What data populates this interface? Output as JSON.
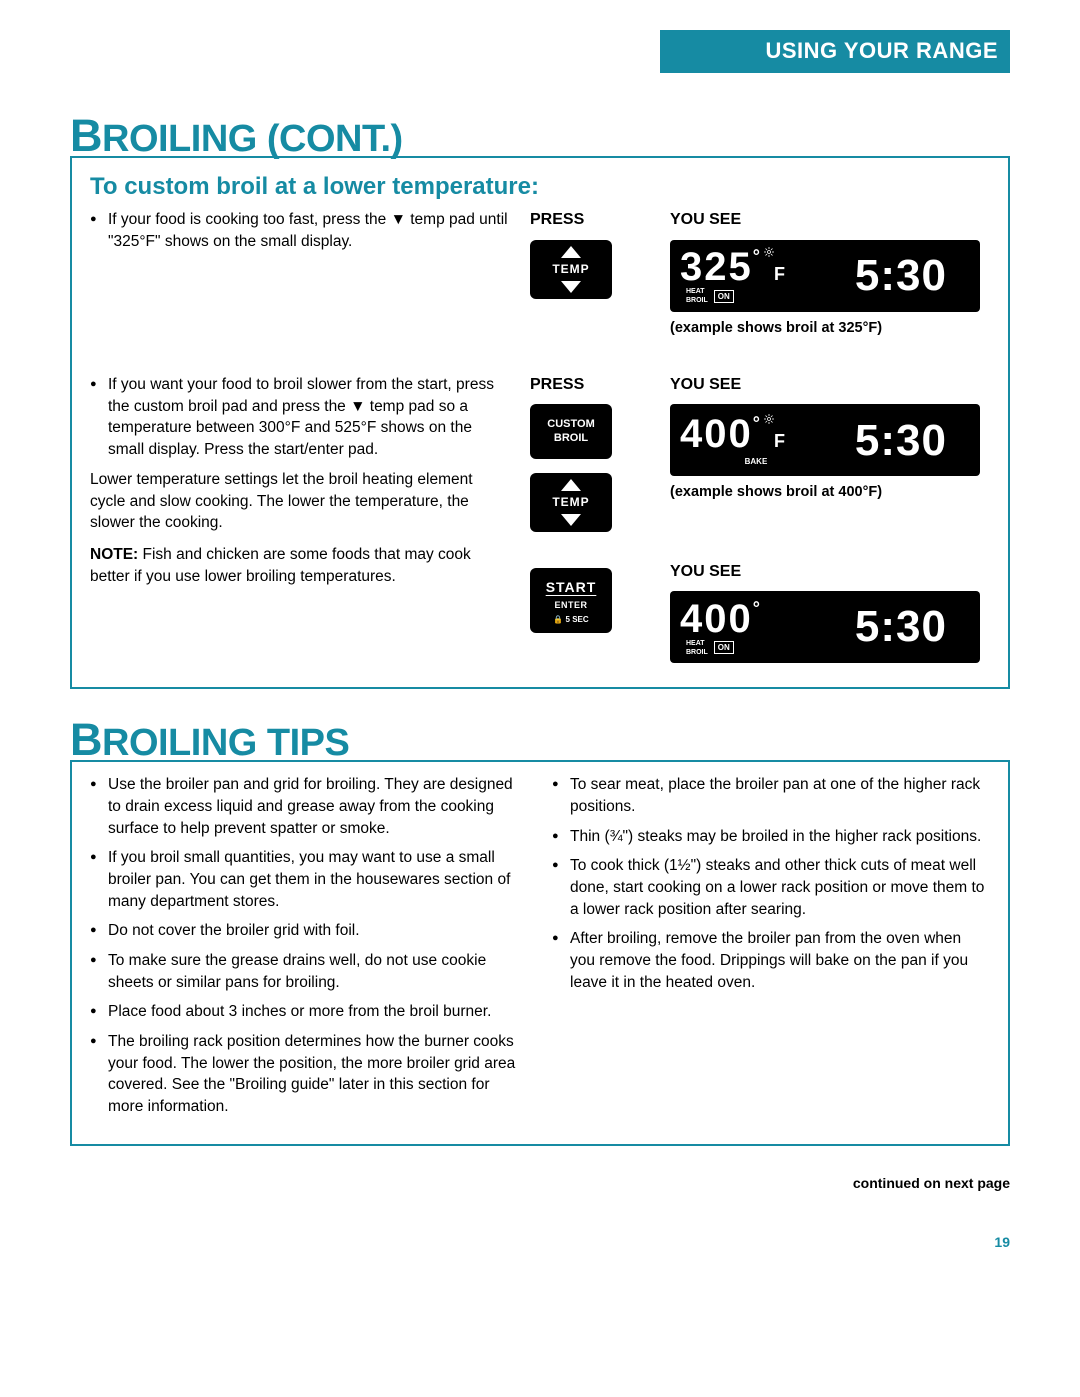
{
  "header": {
    "title": "USING YOUR RANGE"
  },
  "section1": {
    "title_big": "B",
    "title_rest": "ROILING (CONT.)",
    "subhead": "To custom broil at a lower temperature:",
    "row1": {
      "bullet": "If your food is cooking too fast, press the ▼ temp pad until \"325°F\" shows on the small display.",
      "press_label": "PRESS",
      "yousee_label": "YOU SEE",
      "btn_temp": "TEMP",
      "display": {
        "temp": "325",
        "unit": "F",
        "time": "5:30",
        "heat": "HEAT",
        "broil": "BROIL",
        "on": "ON"
      },
      "caption": "(example shows broil at 325°F)"
    },
    "row2": {
      "bullet": "If you want your food to broil slower from the start, press the custom broil pad and press the ▼ temp pad so a temperature between 300°F and 525°F shows on the small display. Press the start/enter pad.",
      "para1": "Lower temperature settings let the broil heating element cycle and slow cooking. The lower the temperature, the slower the cooking.",
      "note_label": "NOTE:",
      "note_text": " Fish and chicken are some foods that may cook better if you use lower broiling temperatures.",
      "press_label": "PRESS",
      "yousee_label": "YOU SEE",
      "btn_custom_l1": "CUSTOM",
      "btn_custom_l2": "BROIL",
      "btn_temp": "TEMP",
      "btn_start": "START",
      "btn_enter": "ENTER",
      "btn_lock": "🔒 5 SEC",
      "display1": {
        "temp": "400",
        "unit": "F",
        "time": "5:30",
        "bake": "BAKE"
      },
      "caption1": "(example shows broil at 400°F)",
      "yousee_label2": "YOU SEE",
      "display2": {
        "temp": "400",
        "time": "5:30",
        "heat": "HEAT",
        "broil": "BROIL",
        "on": "ON"
      }
    }
  },
  "section2": {
    "title_big": "B",
    "title_rest": "ROILING TIPS",
    "left": [
      "Use the broiler pan and grid for broiling. They are designed to drain excess liquid and grease away from the cooking surface to help prevent spatter or smoke.",
      "If you broil small quantities, you may want to use a small broiler pan. You can get them in the housewares section of many department stores.",
      "Do not cover the broiler grid with foil.",
      "To make sure the grease drains well, do not use cookie sheets or similar pans for broiling.",
      "Place food about 3 inches or more from the broil burner.",
      "The broiling rack position determines how the burner cooks your food. The lower the position, the more broiler grid area covered. See the \"Broiling guide\" later in this section for more information."
    ],
    "right": [
      "To sear meat, place the broiler pan at one of the higher rack positions.",
      "Thin (¾\") steaks may be broiled in the higher rack positions.",
      "To cook thick (1½\") steaks and other thick cuts of meat well done, start cooking on a lower rack position or move them to a lower rack position after searing.",
      "After broiling, remove the broiler pan from the oven when you remove the food. Drippings will bake on the pan if you leave it in the heated oven."
    ]
  },
  "footer": {
    "cont": "continued on next page",
    "page": "19"
  }
}
